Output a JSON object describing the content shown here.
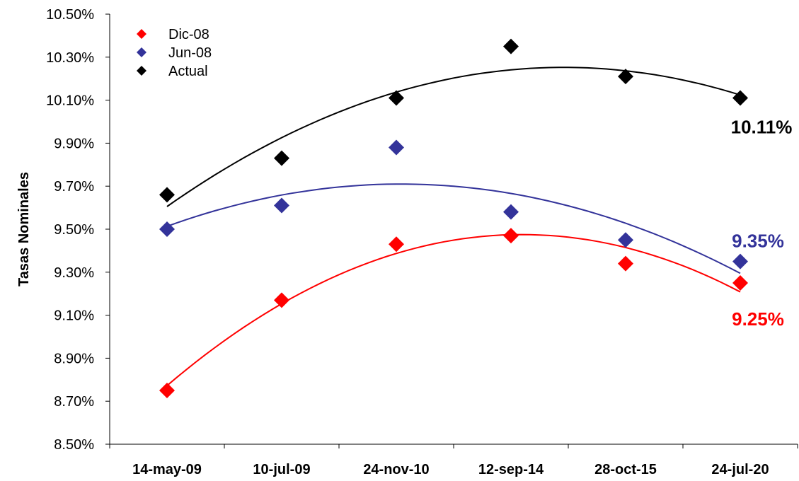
{
  "chart_data": {
    "type": "scatter",
    "title": "",
    "xlabel": "",
    "ylabel": "Tasas Nominales",
    "categories": [
      "14-may-09",
      "10-jul-09",
      "24-nov-10",
      "12-sep-14",
      "28-oct-15",
      "24-jul-20"
    ],
    "y_ticks": [
      "8.50%",
      "8.70%",
      "8.90%",
      "9.10%",
      "9.30%",
      "9.50%",
      "9.70%",
      "9.90%",
      "10.10%",
      "10.30%",
      "10.50%"
    ],
    "ylim": [
      8.5,
      10.5
    ],
    "grid": false,
    "legend_position": "top-left",
    "series": [
      {
        "name": "Dic-08",
        "color": "#ff0000",
        "values": [
          8.75,
          9.17,
          9.43,
          9.47,
          9.34,
          9.25
        ],
        "end_label": "9.25%"
      },
      {
        "name": "Jun-08",
        "color": "#33339a",
        "values": [
          9.5,
          9.61,
          9.88,
          9.58,
          9.45,
          9.35
        ],
        "end_label": "9.35%"
      },
      {
        "name": "Actual",
        "color": "#000000",
        "values": [
          9.66,
          9.83,
          10.11,
          10.35,
          10.21,
          10.11
        ],
        "end_label": "10.11%"
      }
    ],
    "trendlines": [
      {
        "series": "Dic-08",
        "type": "polynomial"
      },
      {
        "series": "Jun-08",
        "type": "polynomial"
      },
      {
        "series": "Actual",
        "type": "polynomial"
      }
    ]
  }
}
